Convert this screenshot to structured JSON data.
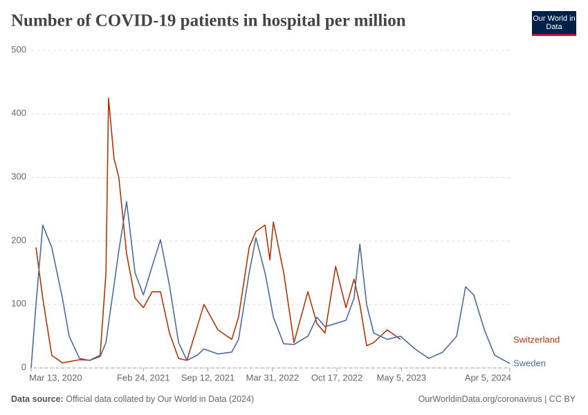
{
  "chart_data": {
    "type": "line",
    "title": "Number of COVID-19 patients in hospital per million",
    "logo": "Our World in Data",
    "source_label": "Data source:",
    "source": "Official data collated by Our World in Data (2024)",
    "credit": "OurWorldinData.org/coronavirus | CC BY",
    "x": [
      "2020-03-13",
      "2020-03-28",
      "2020-04-18",
      "2020-05-16",
      "2020-06-18",
      "2020-07-09",
      "2020-08-10",
      "2020-09-11",
      "2020-10-13",
      "2020-10-31",
      "2020-11-08",
      "2020-11-25",
      "2020-12-10",
      "2021-01-03",
      "2021-01-29",
      "2021-02-24",
      "2021-03-23",
      "2021-04-18",
      "2021-05-16",
      "2021-06-13",
      "2021-07-09",
      "2021-08-10",
      "2021-08-31",
      "2021-10-13",
      "2021-11-25",
      "2021-12-16",
      "2022-01-18",
      "2022-02-08",
      "2022-03-08",
      "2022-03-23",
      "2022-04-03",
      "2022-05-05",
      "2022-06-06",
      "2022-07-19",
      "2022-08-16",
      "2022-09-10",
      "2022-10-13",
      "2022-11-14",
      "2022-12-09",
      "2022-12-27",
      "2023-01-17",
      "2023-02-08",
      "2023-03-22",
      "2023-05-02",
      "2023-06-16",
      "2023-07-29",
      "2023-09-10",
      "2023-10-23",
      "2023-11-20",
      "2023-12-15",
      "2024-01-17",
      "2024-02-18",
      "2024-04-05"
    ],
    "series": [
      {
        "name": "Switzerland",
        "color": "#b13507",
        "values": [
          null,
          190,
          110,
          20,
          8,
          10,
          13,
          12,
          20,
          150,
          425,
          330,
          300,
          180,
          110,
          95,
          120,
          120,
          55,
          15,
          12,
          65,
          100,
          60,
          45,
          80,
          190,
          215,
          225,
          170,
          230,
          150,
          40,
          120,
          70,
          55,
          160,
          95,
          140,
          100,
          35,
          40,
          60,
          45,
          null,
          null,
          null,
          null,
          null,
          null,
          null,
          null,
          null
        ]
      },
      {
        "name": "Sweden",
        "color": "#4c6a9c",
        "values": [
          0,
          100,
          225,
          190,
          110,
          50,
          15,
          12,
          18,
          40,
          70,
          130,
          185,
          262,
          150,
          115,
          160,
          202,
          130,
          40,
          12,
          20,
          30,
          22,
          25,
          45,
          150,
          205,
          150,
          110,
          80,
          38,
          37,
          50,
          80,
          65,
          70,
          75,
          110,
          195,
          100,
          55,
          45,
          50,
          30,
          15,
          25,
          50,
          128,
          115,
          60,
          20,
          7
        ]
      }
    ],
    "xlim": [
      "2020-03-13",
      "2024-04-05"
    ],
    "xticks": [
      {
        "value": "2020-03-13",
        "label": "Mar 13, 2020"
      },
      {
        "value": "2021-02-24",
        "label": "Feb 24, 2021"
      },
      {
        "value": "2021-09-12",
        "label": "Sep 12, 2021"
      },
      {
        "value": "2022-03-31",
        "label": "Mar 31, 2022"
      },
      {
        "value": "2022-10-17",
        "label": "Oct 17, 2022"
      },
      {
        "value": "2023-05-05",
        "label": "May 5, 2023"
      },
      {
        "value": "2024-04-05",
        "label": "Apr 5, 2024"
      }
    ],
    "ylim": [
      0,
      500
    ],
    "yticks": [
      0,
      100,
      200,
      300,
      400,
      500
    ],
    "grid": true
  }
}
